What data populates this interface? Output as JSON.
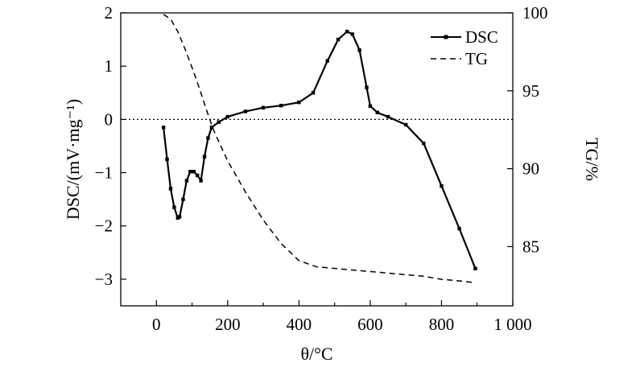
{
  "chart_data": {
    "type": "line",
    "xlabel": "θ/°C",
    "ylabel": "DSC/(mV·mg⁻¹)",
    "y2label": "TG/%",
    "xlim": [
      -100,
      1000
    ],
    "ylim": [
      -3.5,
      2
    ],
    "y2lim": [
      81.2,
      100
    ],
    "x_ticks": [
      0,
      200,
      400,
      600,
      800,
      1000
    ],
    "x_tick_labels": [
      "0",
      "200",
      "400",
      "600",
      "800",
      "1 000"
    ],
    "y_ticks": [
      -3,
      -2,
      -1,
      0,
      1,
      2
    ],
    "y_tick_labels": [
      "−3",
      "−2",
      "−1",
      "0",
      "1",
      "2"
    ],
    "y2_ticks": [
      85,
      90,
      95,
      100
    ],
    "y2_tick_labels": [
      "85",
      "90",
      "95",
      "100"
    ],
    "grid": false,
    "reference_line": {
      "y": 0,
      "style": "dotted"
    },
    "legend": {
      "position": "top-right"
    },
    "series": [
      {
        "name": "DSC",
        "axis": "left",
        "style": "solid-square-markers",
        "x": [
          20,
          30,
          40,
          50,
          60,
          65,
          75,
          85,
          95,
          105,
          115,
          125,
          135,
          145,
          155,
          175,
          200,
          250,
          300,
          350,
          400,
          440,
          480,
          510,
          535,
          550,
          570,
          590,
          600,
          620,
          650,
          700,
          750,
          800,
          850,
          895
        ],
        "y": [
          -0.15,
          -0.75,
          -1.3,
          -1.65,
          -1.85,
          -1.83,
          -1.5,
          -1.15,
          -0.98,
          -0.98,
          -1.05,
          -1.15,
          -0.7,
          -0.35,
          -0.15,
          -0.05,
          0.05,
          0.15,
          0.22,
          0.26,
          0.32,
          0.5,
          1.1,
          1.5,
          1.65,
          1.6,
          1.3,
          0.6,
          0.25,
          0.13,
          0.05,
          -0.1,
          -0.45,
          -1.25,
          -2.05,
          -2.8
        ]
      },
      {
        "name": "TG",
        "axis": "right",
        "style": "dashed",
        "x": [
          20,
          40,
          60,
          80,
          100,
          120,
          140,
          160,
          180,
          200,
          250,
          300,
          350,
          400,
          450,
          500,
          550,
          600,
          650,
          700,
          750,
          800,
          850,
          890
        ],
        "y": [
          99.9,
          99.6,
          98.8,
          97.7,
          96.5,
          95.2,
          93.8,
          92.5,
          91.5,
          90.5,
          88.5,
          86.7,
          85.2,
          84.1,
          83.7,
          83.6,
          83.5,
          83.4,
          83.3,
          83.2,
          83.1,
          82.9,
          82.8,
          82.7
        ]
      }
    ]
  }
}
